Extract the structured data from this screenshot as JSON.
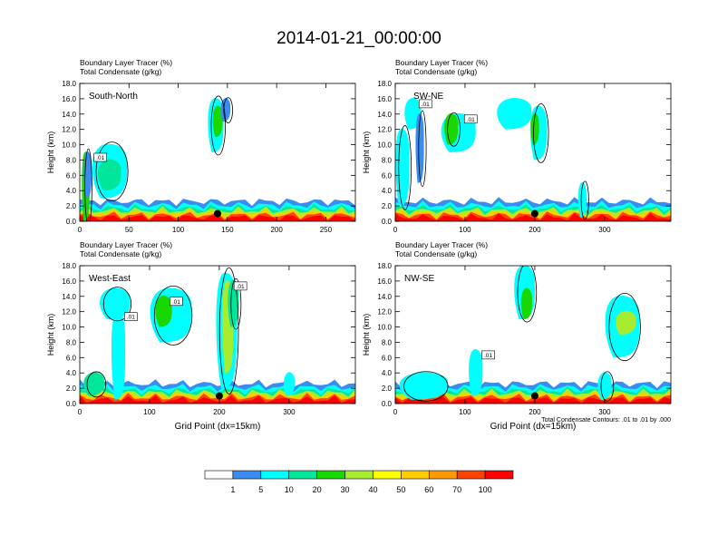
{
  "main_title": "2014-01-21_00:00:00",
  "colorbar": {
    "colors": [
      "#ffffff",
      "#3a8cf0",
      "#00ffff",
      "#00e69a",
      "#18d800",
      "#a8ec30",
      "#ffff00",
      "#ffcc00",
      "#ff9900",
      "#ff4400",
      "#ff0000"
    ],
    "labels": [
      "1",
      "5",
      "10",
      "20",
      "30",
      "40",
      "50",
      "60",
      "70",
      "100"
    ]
  },
  "chart_data": [
    {
      "type": "heatmap",
      "title_lines": [
        "Boundary Layer Tracer    (%)",
        "Total Condensate    (g/kg)"
      ],
      "panel_label": "South-North",
      "ylabel": "Height (km)",
      "xlabel": "",
      "xlim": [
        0,
        280
      ],
      "ylim": [
        0,
        18
      ],
      "xticks": [
        "0",
        "50",
        "100",
        "150",
        "200",
        "250"
      ],
      "yticks": [
        "0.0",
        "2.0",
        "4.0",
        "6.0",
        "8.0",
        "10.0",
        "12.0",
        "14.0",
        "16.0",
        "18.0"
      ],
      "contour_labels": [
        ".01"
      ],
      "marker": {
        "x": 140,
        "y": 1.0
      }
    },
    {
      "type": "heatmap",
      "title_lines": [
        "Boundary Layer Tracer    (%)",
        "Total Condensate    (g/kg)"
      ],
      "panel_label": "SW-NE",
      "ylabel": "Height (km)",
      "xlabel": "",
      "xlim": [
        0,
        395
      ],
      "ylim": [
        0,
        18
      ],
      "xticks": [
        "0",
        "100",
        "200",
        "300"
      ],
      "yticks": [
        "0.0",
        "2.0",
        "4.0",
        "6.0",
        "8.0",
        "10.0",
        "12.0",
        "14.0",
        "16.0",
        "18.0"
      ],
      "contour_labels": [
        ".01",
        ".01"
      ],
      "marker": {
        "x": 200,
        "y": 1.0
      }
    },
    {
      "type": "heatmap",
      "title_lines": [
        "Boundary Layer Tracer    (%)",
        "Total Condensate    (g/kg)"
      ],
      "panel_label": "West-East",
      "ylabel": "Height (km)",
      "xlabel": "Grid Point (dx=15km)",
      "xlim": [
        0,
        395
      ],
      "ylim": [
        0,
        18
      ],
      "xticks": [
        "0",
        "100",
        "200",
        "300"
      ],
      "yticks": [
        "0.0",
        "2.0",
        "4.0",
        "6.0",
        "8.0",
        "10.0",
        "12.0",
        "14.0",
        "16.0",
        "18.0"
      ],
      "contour_labels": [
        ".01",
        ".01",
        ".01"
      ],
      "marker": {
        "x": 200,
        "y": 1.0
      }
    },
    {
      "type": "heatmap",
      "title_lines": [
        "Boundary Layer Tracer    (%)",
        "Total Condensate    (g/kg)"
      ],
      "panel_label": "NW-SE",
      "ylabel": "Height (km)",
      "xlabel": "Grid Point (dx=15km)",
      "xlim": [
        0,
        395
      ],
      "ylim": [
        0,
        18
      ],
      "xticks": [
        "0",
        "100",
        "200",
        "300"
      ],
      "yticks": [
        "0.0",
        "2.0",
        "4.0",
        "6.0",
        "8.0",
        "10.0",
        "12.0",
        "14.0",
        "16.0",
        "18.0"
      ],
      "contour_labels": [
        ".01"
      ],
      "contour_note": "Total Condensate Contours: .01 to .01 by .000",
      "marker": {
        "x": 200,
        "y": 1.0
      }
    }
  ]
}
